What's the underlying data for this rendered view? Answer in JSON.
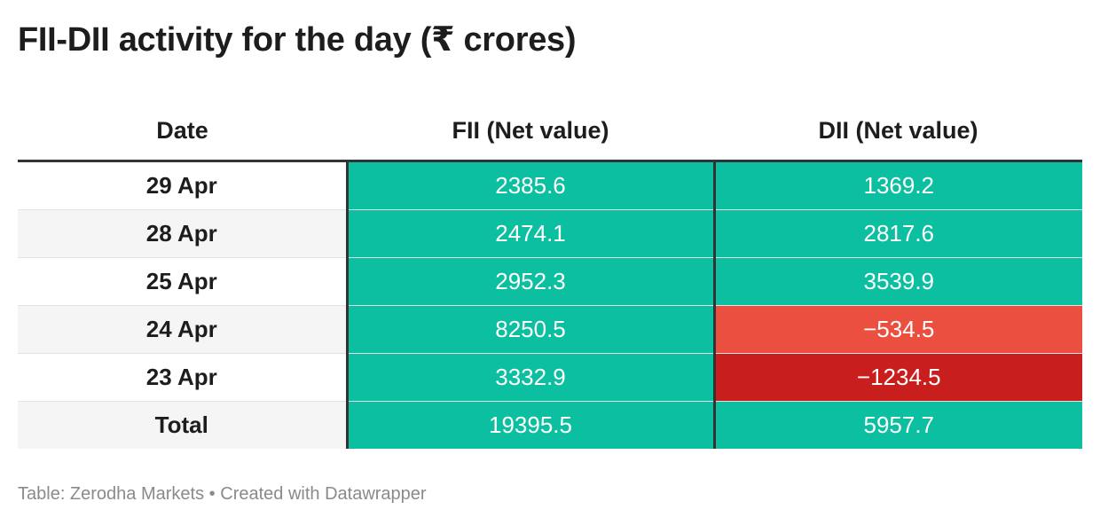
{
  "title": "FII-DII activity for the day (₹ crores)",
  "footer": {
    "source": "Table: Zerodha Markets",
    "separator": "•",
    "credit": "Created with Datawrapper"
  },
  "colors": {
    "positive": "#0bbfa0",
    "moderate_negative": "#ea4f40",
    "strong_negative": "#c91e1e"
  },
  "chart_data": {
    "type": "table",
    "title": "FII-DII activity for the day (₹ crores)",
    "columns": [
      "Date",
      "FII (Net value)",
      "DII (Net value)"
    ],
    "rows": [
      {
        "date": "29 Apr",
        "fii": "2385.6",
        "dii": "1369.2",
        "fii_color": "#0bbfa0",
        "dii_color": "#0bbfa0"
      },
      {
        "date": "28 Apr",
        "fii": "2474.1",
        "dii": "2817.6",
        "fii_color": "#0bbfa0",
        "dii_color": "#0bbfa0"
      },
      {
        "date": "25 Apr",
        "fii": "2952.3",
        "dii": "3539.9",
        "fii_color": "#0bbfa0",
        "dii_color": "#0bbfa0"
      },
      {
        "date": "24 Apr",
        "fii": "8250.5",
        "dii": "−534.5",
        "fii_color": "#0bbfa0",
        "dii_color": "#ea4f40"
      },
      {
        "date": "23 Apr",
        "fii": "3332.9",
        "dii": "−1234.5",
        "fii_color": "#0bbfa0",
        "dii_color": "#c91e1e"
      },
      {
        "date": "Total",
        "fii": "19395.5",
        "dii": "5957.7",
        "fii_color": "#0bbfa0",
        "dii_color": "#0bbfa0"
      }
    ]
  }
}
